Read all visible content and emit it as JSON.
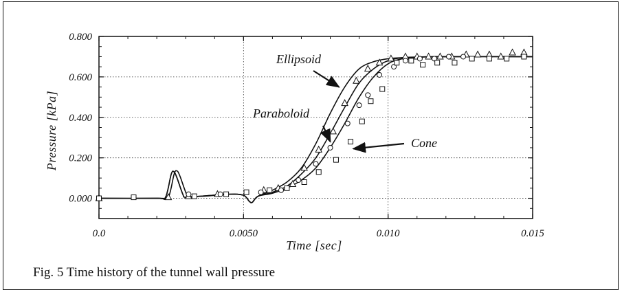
{
  "caption": "Fig. 5  Time history of the tunnel wall pressure",
  "chart_data": {
    "type": "line",
    "title": "",
    "xlabel": "Time [sec]",
    "ylabel": "Pressure [kPa]",
    "xlim": [
      0,
      0.015
    ],
    "ylim": [
      -0.1,
      0.8
    ],
    "x_ticks": [
      {
        "value": 0.0,
        "label": "0.0"
      },
      {
        "value": 0.005,
        "label": "0.0050"
      },
      {
        "value": 0.01,
        "label": "0.010"
      },
      {
        "value": 0.015,
        "label": "0.015"
      }
    ],
    "y_ticks": [
      {
        "value": 0.0,
        "label": "0.000"
      },
      {
        "value": 0.2,
        "label": "0.200"
      },
      {
        "value": 0.4,
        "label": "0.400"
      },
      {
        "value": 0.6,
        "label": "0.600"
      },
      {
        "value": 0.8,
        "label": "0.800"
      }
    ],
    "grid": "dotted gridlines at major ticks",
    "series": [
      {
        "name": "Ellipsoid",
        "curve": [
          [
            0,
            0
          ],
          [
            0.002,
            0
          ],
          [
            0.0023,
            0.005
          ],
          [
            0.0025,
            0.12
          ],
          [
            0.0026,
            0.13
          ],
          [
            0.0027,
            0.1
          ],
          [
            0.0029,
            0.02
          ],
          [
            0.003,
            0.005
          ],
          [
            0.0035,
            0.01
          ],
          [
            0.0045,
            0.02
          ],
          [
            0.005,
            0.015
          ],
          [
            0.0052,
            -0.015
          ],
          [
            0.0053,
            -0.02
          ],
          [
            0.0055,
            0.01
          ],
          [
            0.006,
            0.04
          ],
          [
            0.0065,
            0.08
          ],
          [
            0.007,
            0.15
          ],
          [
            0.0075,
            0.27
          ],
          [
            0.008,
            0.42
          ],
          [
            0.0085,
            0.55
          ],
          [
            0.009,
            0.64
          ],
          [
            0.0095,
            0.675
          ],
          [
            0.01,
            0.69
          ],
          [
            0.0105,
            0.695
          ],
          [
            0.011,
            0.698
          ],
          [
            0.012,
            0.7
          ],
          [
            0.015,
            0.7
          ]
        ],
        "markers": [
          [
            0,
            0
          ],
          [
            0.0024,
            0.005
          ],
          [
            0.0031,
            0.01
          ],
          [
            0.0041,
            0.02
          ],
          [
            0.0057,
            0.04
          ],
          [
            0.0062,
            0.05
          ],
          [
            0.0067,
            0.07
          ],
          [
            0.0071,
            0.15
          ],
          [
            0.0076,
            0.24
          ],
          [
            0.0081,
            0.33
          ],
          [
            0.0085,
            0.47
          ],
          [
            0.0089,
            0.58
          ],
          [
            0.0093,
            0.64
          ],
          [
            0.0097,
            0.67
          ],
          [
            0.0101,
            0.69
          ],
          [
            0.0106,
            0.7
          ],
          [
            0.011,
            0.7
          ],
          [
            0.0114,
            0.7
          ],
          [
            0.0118,
            0.7
          ],
          [
            0.0122,
            0.7
          ],
          [
            0.0127,
            0.71
          ],
          [
            0.0131,
            0.71
          ],
          [
            0.0135,
            0.71
          ],
          [
            0.0139,
            0.7
          ],
          [
            0.0143,
            0.72
          ],
          [
            0.0147,
            0.72
          ]
        ],
        "marker": "triangle"
      },
      {
        "name": "Paraboloid",
        "curve": [
          [
            0,
            0
          ],
          [
            0.002,
            0
          ],
          [
            0.0023,
            0.005
          ],
          [
            0.0025,
            0.12
          ],
          [
            0.0026,
            0.13
          ],
          [
            0.0027,
            0.1
          ],
          [
            0.0029,
            0.02
          ],
          [
            0.003,
            0.005
          ],
          [
            0.0035,
            0.01
          ],
          [
            0.0045,
            0.02
          ],
          [
            0.005,
            0.015
          ],
          [
            0.0052,
            -0.015
          ],
          [
            0.0053,
            -0.02
          ],
          [
            0.0055,
            0.01
          ],
          [
            0.006,
            0.03
          ],
          [
            0.0065,
            0.06
          ],
          [
            0.007,
            0.12
          ],
          [
            0.0075,
            0.2
          ],
          [
            0.008,
            0.32
          ],
          [
            0.0085,
            0.45
          ],
          [
            0.009,
            0.57
          ],
          [
            0.0095,
            0.64
          ],
          [
            0.01,
            0.68
          ],
          [
            0.0105,
            0.695
          ],
          [
            0.011,
            0.698
          ],
          [
            0.012,
            0.7
          ],
          [
            0.015,
            0.7
          ]
        ],
        "markers": [
          [
            0,
            0
          ],
          [
            0.0031,
            0.02
          ],
          [
            0.0042,
            0.02
          ],
          [
            0.0056,
            0.03
          ],
          [
            0.0063,
            0.04
          ],
          [
            0.0069,
            0.09
          ],
          [
            0.0075,
            0.17
          ],
          [
            0.008,
            0.25
          ],
          [
            0.0086,
            0.37
          ],
          [
            0.009,
            0.46
          ],
          [
            0.0093,
            0.51
          ],
          [
            0.0097,
            0.61
          ],
          [
            0.0102,
            0.65
          ],
          [
            0.0106,
            0.68
          ],
          [
            0.0111,
            0.69
          ],
          [
            0.0116,
            0.69
          ],
          [
            0.0121,
            0.7
          ],
          [
            0.0126,
            0.7
          ]
        ],
        "marker": "circle"
      },
      {
        "name": "Cone",
        "curve": [
          [
            0,
            0
          ],
          [
            0.0021,
            0
          ],
          [
            0.0024,
            0.005
          ],
          [
            0.0026,
            0.12
          ],
          [
            0.0027,
            0.135
          ],
          [
            0.0028,
            0.11
          ],
          [
            0.003,
            0.03
          ],
          [
            0.0031,
            0.01
          ],
          [
            0.0036,
            0.01
          ],
          [
            0.0045,
            0.02
          ],
          [
            0.005,
            0.015
          ],
          [
            0.0052,
            -0.015
          ],
          [
            0.0053,
            -0.02
          ],
          [
            0.0055,
            0.01
          ],
          [
            0.006,
            0.025
          ],
          [
            0.0065,
            0.05
          ],
          [
            0.007,
            0.09
          ],
          [
            0.0075,
            0.15
          ],
          [
            0.008,
            0.25
          ],
          [
            0.0085,
            0.37
          ],
          [
            0.009,
            0.5
          ],
          [
            0.0095,
            0.6
          ],
          [
            0.01,
            0.665
          ],
          [
            0.0105,
            0.69
          ],
          [
            0.011,
            0.697
          ],
          [
            0.012,
            0.7
          ],
          [
            0.015,
            0.7
          ]
        ],
        "markers": [
          [
            0,
            0
          ],
          [
            0.0012,
            0.005
          ],
          [
            0.0033,
            0.01
          ],
          [
            0.0044,
            0.02
          ],
          [
            0.0051,
            0.03
          ],
          [
            0.0059,
            0.04
          ],
          [
            0.0065,
            0.05
          ],
          [
            0.0071,
            0.08
          ],
          [
            0.0076,
            0.13
          ],
          [
            0.0082,
            0.19
          ],
          [
            0.0087,
            0.28
          ],
          [
            0.0091,
            0.38
          ],
          [
            0.0094,
            0.48
          ],
          [
            0.0098,
            0.54
          ],
          [
            0.0103,
            0.67
          ],
          [
            0.0108,
            0.68
          ],
          [
            0.0112,
            0.66
          ],
          [
            0.0117,
            0.67
          ],
          [
            0.0123,
            0.67
          ],
          [
            0.0129,
            0.69
          ],
          [
            0.0135,
            0.69
          ],
          [
            0.0141,
            0.69
          ],
          [
            0.0147,
            0.7
          ]
        ],
        "marker": "square"
      }
    ],
    "annotations": [
      {
        "text": "Ellipsoid",
        "arrow_to": [
          0.0083,
          0.55
        ]
      },
      {
        "text": "Paraboloid",
        "arrow_to": [
          0.008,
          0.28
        ]
      },
      {
        "text": "Cone",
        "arrow_to": [
          0.0088,
          0.245
        ]
      }
    ]
  }
}
